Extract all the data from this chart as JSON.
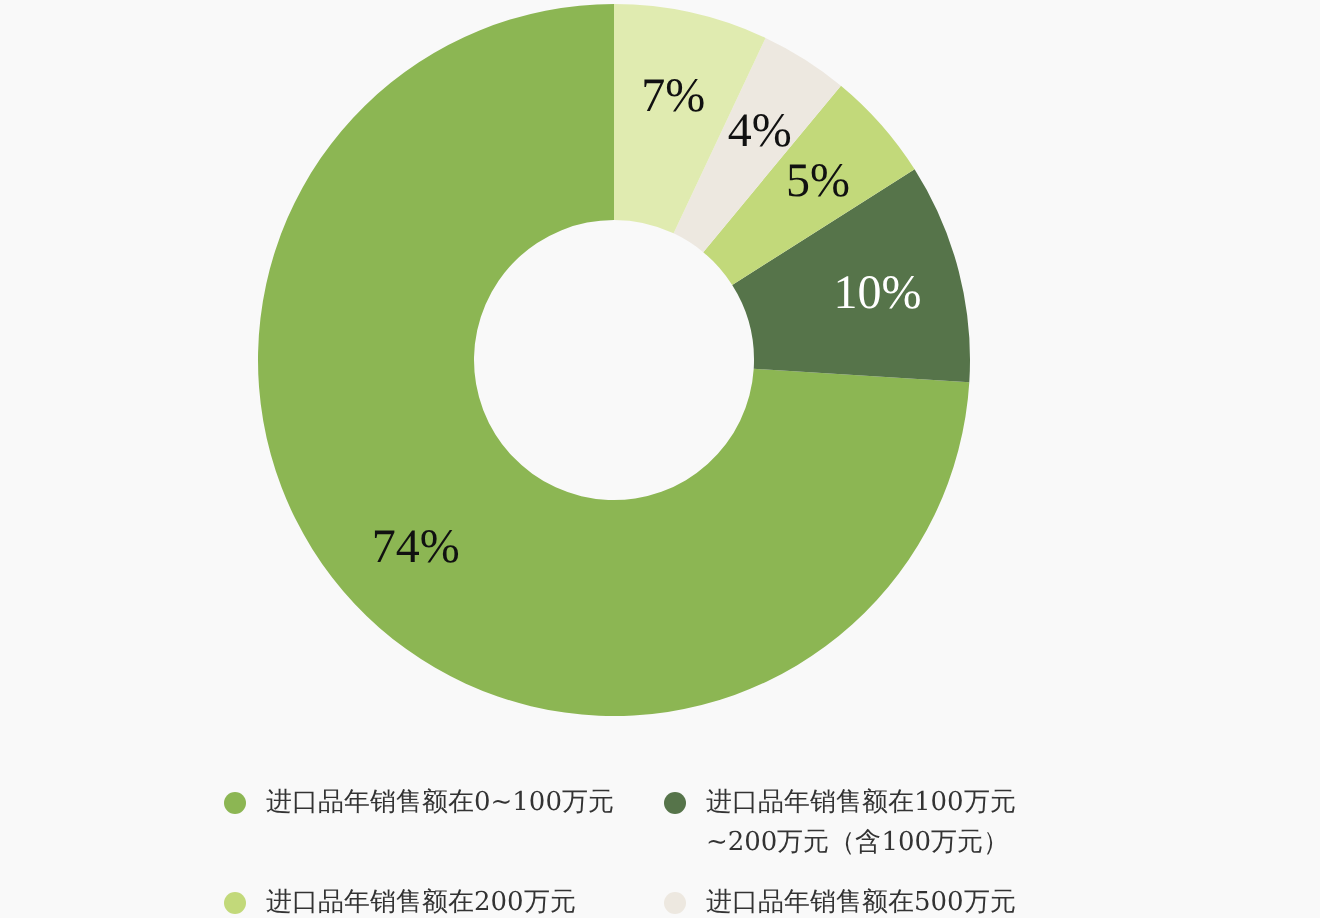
{
  "chart_data": {
    "type": "donut",
    "categories": [
      "进口品年销售额在0~100万元",
      "进口品年销售额在100万元~200万元（含100万元）",
      "进口品年销售额在200万元",
      "进口品年销售额在500万元",
      null
    ],
    "values": [
      74,
      10,
      5,
      4,
      7
    ],
    "colors": [
      "#8cb653",
      "#56744a",
      "#c2d97a",
      "#ede8e0",
      "#e0ebb0"
    ],
    "value_labels": [
      "74%",
      "10%",
      "5%",
      "4%",
      "7%"
    ],
    "legend": "bottom"
  }
}
